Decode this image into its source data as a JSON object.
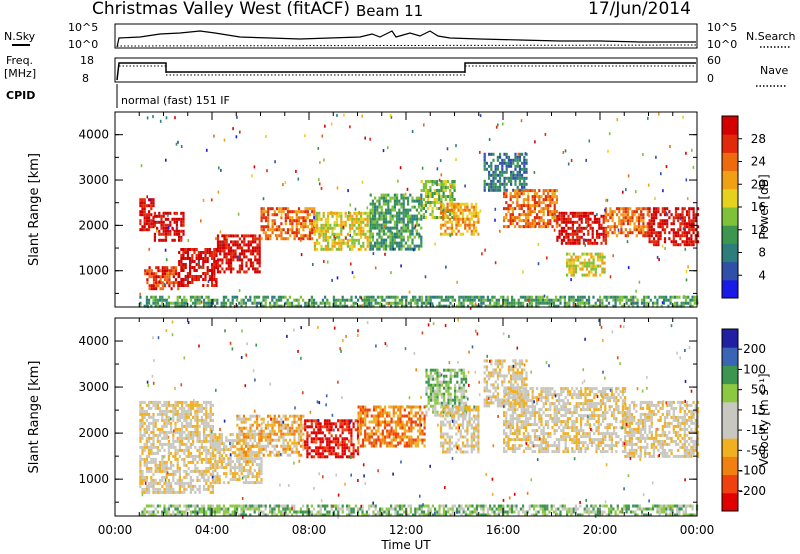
{
  "header": {
    "site": "Christmas Valley West (fitACF)",
    "beam": "Beam 11",
    "date": "17/Jun/2014"
  },
  "param_panels": {
    "nsky_label": "N.Sky",
    "nsearch_label": "N.Search",
    "noise_ticks": [
      "10^5",
      "10^0"
    ],
    "freq_label": "Freq.",
    "freq_unit": "[MHz]",
    "freq_ticks": [
      "18",
      "8"
    ],
    "nave_label": "Nave",
    "nave_ticks": [
      "60",
      "0"
    ],
    "cpid_label": "CPID",
    "cpid_text": "normal (fast) 151 IF"
  },
  "chart_data": [
    {
      "type": "heatmap",
      "title": "",
      "ylabel": "Slant Range [km]",
      "xlabel": "",
      "y_ticks": [
        "1000",
        "2000",
        "3000",
        "4000"
      ],
      "ylim": [
        200,
        4500
      ],
      "xlim": [
        0,
        24
      ],
      "colorbar": {
        "label": "Power [dB]",
        "ticks": [
          "4",
          "8",
          "12",
          "16",
          "20",
          "24",
          "28"
        ],
        "colors": [
          "#1a1ae6",
          "#2f4fa8",
          "#2e7d7d",
          "#3c9650",
          "#7fc23a",
          "#e6d21e",
          "#f0a014",
          "#ee6a0e",
          "#e02a0a",
          "#d40000"
        ]
      },
      "bands": [
        {
          "t": [
            1.0,
            1.6
          ],
          "r": [
            1900,
            2600
          ],
          "level": 9
        },
        {
          "t": [
            1.6,
            2.8
          ],
          "r": [
            1700,
            2300
          ],
          "level": 9
        },
        {
          "t": [
            1.2,
            2.6
          ],
          "r": [
            600,
            1100
          ],
          "level": 8
        },
        {
          "t": [
            2.6,
            4.2
          ],
          "r": [
            700,
            1500
          ],
          "level": 9
        },
        {
          "t": [
            4.2,
            6.0
          ],
          "r": [
            1000,
            1800
          ],
          "level": 9
        },
        {
          "t": [
            6.0,
            8.2
          ],
          "r": [
            1700,
            2400
          ],
          "level": 7
        },
        {
          "t": [
            8.2,
            10.5
          ],
          "r": [
            1500,
            2300
          ],
          "level": 5
        },
        {
          "t": [
            10.5,
            12.6
          ],
          "r": [
            1500,
            2700
          ],
          "level": 3
        },
        {
          "t": [
            12.6,
            14.0
          ],
          "r": [
            2200,
            3000
          ],
          "level": 4
        },
        {
          "t": [
            13.4,
            15.0
          ],
          "r": [
            1800,
            2500
          ],
          "level": 6
        },
        {
          "t": [
            15.2,
            17.0
          ],
          "r": [
            2800,
            3600
          ],
          "level": 2
        },
        {
          "t": [
            16.0,
            18.2
          ],
          "r": [
            2000,
            2800
          ],
          "level": 7
        },
        {
          "t": [
            18.2,
            20.2
          ],
          "r": [
            1600,
            2300
          ],
          "level": 9
        },
        {
          "t": [
            18.6,
            20.2
          ],
          "r": [
            900,
            1400
          ],
          "level": 5
        },
        {
          "t": [
            20.2,
            22.0
          ],
          "r": [
            1800,
            2400
          ],
          "level": 7
        },
        {
          "t": [
            22.0,
            24.0
          ],
          "r": [
            1600,
            2400
          ],
          "level": 9
        },
        {
          "t": [
            1.0,
            24.0
          ],
          "r": [
            250,
            450
          ],
          "level": 3
        }
      ]
    },
    {
      "type": "heatmap",
      "title": "",
      "ylabel": "Slant Range [km]",
      "xlabel": "Time UT",
      "x_ticks": [
        "00:00",
        "04:00",
        "08:00",
        "12:00",
        "16:00",
        "20:00",
        "00:00"
      ],
      "y_ticks": [
        "1000",
        "2000",
        "3000",
        "4000"
      ],
      "ylim": [
        200,
        4500
      ],
      "xlim": [
        0,
        24
      ],
      "colorbar": {
        "label": "Velocity [m s⁻¹]",
        "ticks": [
          "-200",
          "-100",
          "-50",
          "-15",
          "15",
          "50",
          "100",
          "200"
        ],
        "colors": [
          "#e00000",
          "#f04010",
          "#f08010",
          "#f0b020",
          "#c8c8c0",
          "#c8c8c0",
          "#8cc840",
          "#3c9650",
          "#3a64b4",
          "#2020a0"
        ]
      },
      "bands": [
        {
          "t": [
            1.0,
            4.0
          ],
          "r": [
            700,
            2700
          ],
          "level": 4
        },
        {
          "t": [
            4.0,
            6.0
          ],
          "r": [
            900,
            2000
          ],
          "level": 4
        },
        {
          "t": [
            5.0,
            7.8
          ],
          "r": [
            1500,
            2400
          ],
          "level": 3
        },
        {
          "t": [
            7.8,
            10.0
          ],
          "r": [
            1500,
            2300
          ],
          "level": 0
        },
        {
          "t": [
            10.0,
            12.8
          ],
          "r": [
            1700,
            2600
          ],
          "level": 2
        },
        {
          "t": [
            12.8,
            14.5
          ],
          "r": [
            2400,
            3400
          ],
          "level": 6
        },
        {
          "t": [
            13.4,
            15.0
          ],
          "r": [
            1600,
            2600
          ],
          "level": 4
        },
        {
          "t": [
            15.2,
            17.0
          ],
          "r": [
            2600,
            3600
          ],
          "level": 4
        },
        {
          "t": [
            16.0,
            21.0
          ],
          "r": [
            1600,
            3000
          ],
          "level": 4
        },
        {
          "t": [
            21.0,
            24.0
          ],
          "r": [
            1500,
            2700
          ],
          "level": 4
        },
        {
          "t": [
            1.0,
            24.0
          ],
          "r": [
            250,
            450
          ],
          "level": 6
        }
      ]
    }
  ]
}
